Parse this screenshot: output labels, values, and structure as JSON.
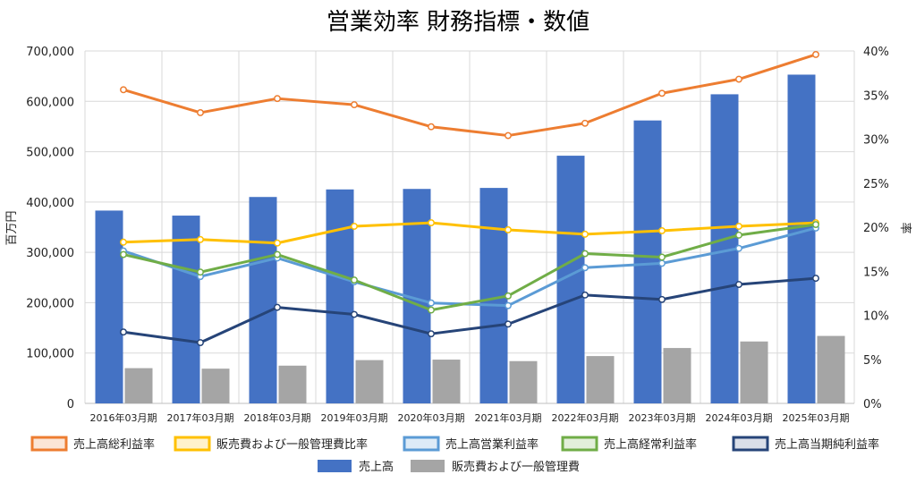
{
  "chart_data": {
    "type": "bar",
    "title": "営業効率 財務指標・数値",
    "categories": [
      "2016年03月期",
      "2017年03月期",
      "2018年03月期",
      "2019年03月期",
      "2020年03月期",
      "2021年03月期",
      "2022年03月期",
      "2023年03月期",
      "2024年03月期",
      "2025年03月期"
    ],
    "y_left": {
      "label": "百万円",
      "range": [
        0,
        700000
      ],
      "ticks": [
        "0",
        "100,000",
        "200,000",
        "300,000",
        "400,000",
        "500,000",
        "600,000",
        "700,000"
      ],
      "tick_values": [
        0,
        100000,
        200000,
        300000,
        400000,
        500000,
        600000,
        700000
      ]
    },
    "y_right": {
      "label": "率",
      "range": [
        0,
        40
      ],
      "ticks": [
        "0%",
        "5%",
        "10%",
        "15%",
        "20%",
        "25%",
        "30%",
        "35%",
        "40%"
      ],
      "tick_values": [
        0,
        5,
        10,
        15,
        20,
        25,
        30,
        35,
        40
      ]
    },
    "bar_series": [
      {
        "name": "売上高",
        "color": "#4472C4",
        "values": [
          383000,
          373000,
          410000,
          425000,
          426000,
          428000,
          492000,
          562000,
          614000,
          653000
        ]
      },
      {
        "name": "販売費および一般管理費",
        "color": "#A5A5A5",
        "values": [
          70000,
          69000,
          75000,
          86000,
          87000,
          84000,
          94000,
          110000,
          123000,
          134000
        ]
      }
    ],
    "line_series": [
      {
        "name": "売上高総利益率",
        "color": "#ED7D31",
        "values": [
          35.6,
          33.0,
          34.6,
          33.9,
          31.4,
          30.4,
          31.8,
          35.2,
          36.8,
          39.6
        ]
      },
      {
        "name": "販売費および一般管理費比率",
        "color": "#FFC000",
        "values": [
          18.3,
          18.6,
          18.2,
          20.1,
          20.5,
          19.7,
          19.2,
          19.6,
          20.1,
          20.5
        ]
      },
      {
        "name": "売上高営業利益率",
        "color": "#5B9BD5",
        "values": [
          17.3,
          14.4,
          16.5,
          13.8,
          11.4,
          11.1,
          15.4,
          15.9,
          17.6,
          19.9
        ]
      },
      {
        "name": "売上高経常利益率",
        "color": "#70AD47",
        "values": [
          16.9,
          14.9,
          16.9,
          14.0,
          10.6,
          12.2,
          17.0,
          16.6,
          19.1,
          20.3
        ]
      },
      {
        "name": "売上高当期純利益率",
        "color": "#264478",
        "values": [
          8.1,
          6.9,
          10.9,
          10.1,
          7.9,
          9.0,
          12.3,
          11.8,
          13.5,
          14.2
        ]
      }
    ],
    "legend": {
      "position": "bottom",
      "items": [
        "売上高総利益率",
        "販売費および一般管理費比率",
        "売上高営業利益率",
        "売上高経常利益率",
        "売上高当期純利益率",
        "売上高",
        "販売費および一般管理費"
      ]
    },
    "grid": true
  }
}
